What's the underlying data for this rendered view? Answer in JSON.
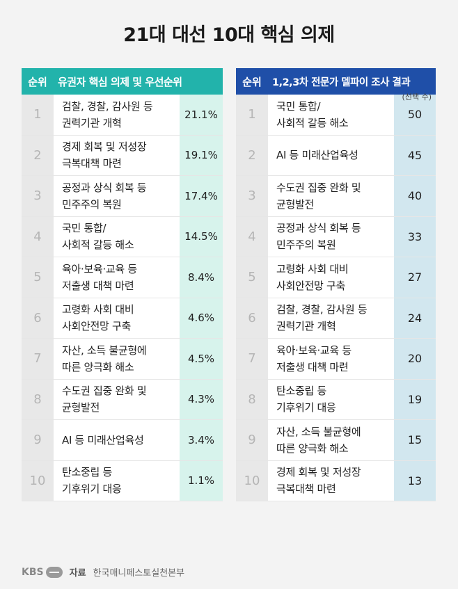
{
  "title": "21대 대선 10대 핵심 의제",
  "left": {
    "rank_header": "순위",
    "topic_header": "유권자 핵심 의제 및 우선순위",
    "rows": [
      {
        "rank": "1",
        "topic": "검찰, 경찰, 감사원 등\n권력기관 개혁",
        "value": "21.1%"
      },
      {
        "rank": "2",
        "topic": "경제 회복 및 저성장\n극복대책 마련",
        "value": "19.1%"
      },
      {
        "rank": "3",
        "topic": "공정과 상식 회복 등\n민주주의 복원",
        "value": "17.4%"
      },
      {
        "rank": "4",
        "topic": "국민 통합/\n사회적 갈등 해소",
        "value": "14.5%"
      },
      {
        "rank": "5",
        "topic": "육아·보육·교육 등\n저출생 대책 마련",
        "value": "8.4%"
      },
      {
        "rank": "6",
        "topic": "고령화 사회 대비\n사회안전망 구축",
        "value": "4.6%"
      },
      {
        "rank": "7",
        "topic": "자산, 소득 불균형에\n따른 양극화 해소",
        "value": "4.5%"
      },
      {
        "rank": "8",
        "topic": "수도권 집중 완화 및\n균형발전",
        "value": "4.3%"
      },
      {
        "rank": "9",
        "topic": "AI 등 미래산업육성",
        "value": "3.4%"
      },
      {
        "rank": "10",
        "topic": "탄소중립 등\n기후위기 대응",
        "value": "1.1%"
      }
    ]
  },
  "right": {
    "rank_header": "순위",
    "topic_header": "1,2,3차 전문가 델파이 조사 결과",
    "note": "(선택 수)",
    "rows": [
      {
        "rank": "1",
        "topic": "국민 통합/\n사회적 갈등 해소",
        "value": "50"
      },
      {
        "rank": "2",
        "topic": "AI 등 미래산업육성",
        "value": "45"
      },
      {
        "rank": "3",
        "topic": "수도권 집중 완화 및\n균형발전",
        "value": "40"
      },
      {
        "rank": "4",
        "topic": "공정과 상식 회복 등\n민주주의 복원",
        "value": "33"
      },
      {
        "rank": "5",
        "topic": "고령화 사회 대비\n사회안전망 구축",
        "value": "27"
      },
      {
        "rank": "6",
        "topic": "검찰, 경찰, 감사원 등\n권력기관 개혁",
        "value": "24"
      },
      {
        "rank": "7",
        "topic": "육아·보육·교육 등\n저출생 대책 마련",
        "value": "20"
      },
      {
        "rank": "8",
        "topic": "탄소중립 등\n기후위기 대응",
        "value": "19"
      },
      {
        "rank": "9",
        "topic": "자산, 소득 불균형에\n따른 양극화 해소",
        "value": "15"
      },
      {
        "rank": "10",
        "topic": "경제 회복 및 저성장\n극복대책 마련",
        "value": "13"
      }
    ]
  },
  "footer": {
    "logo_text": "KBS",
    "source_label": "자료",
    "source": "한국매니페스토실천본부"
  }
}
